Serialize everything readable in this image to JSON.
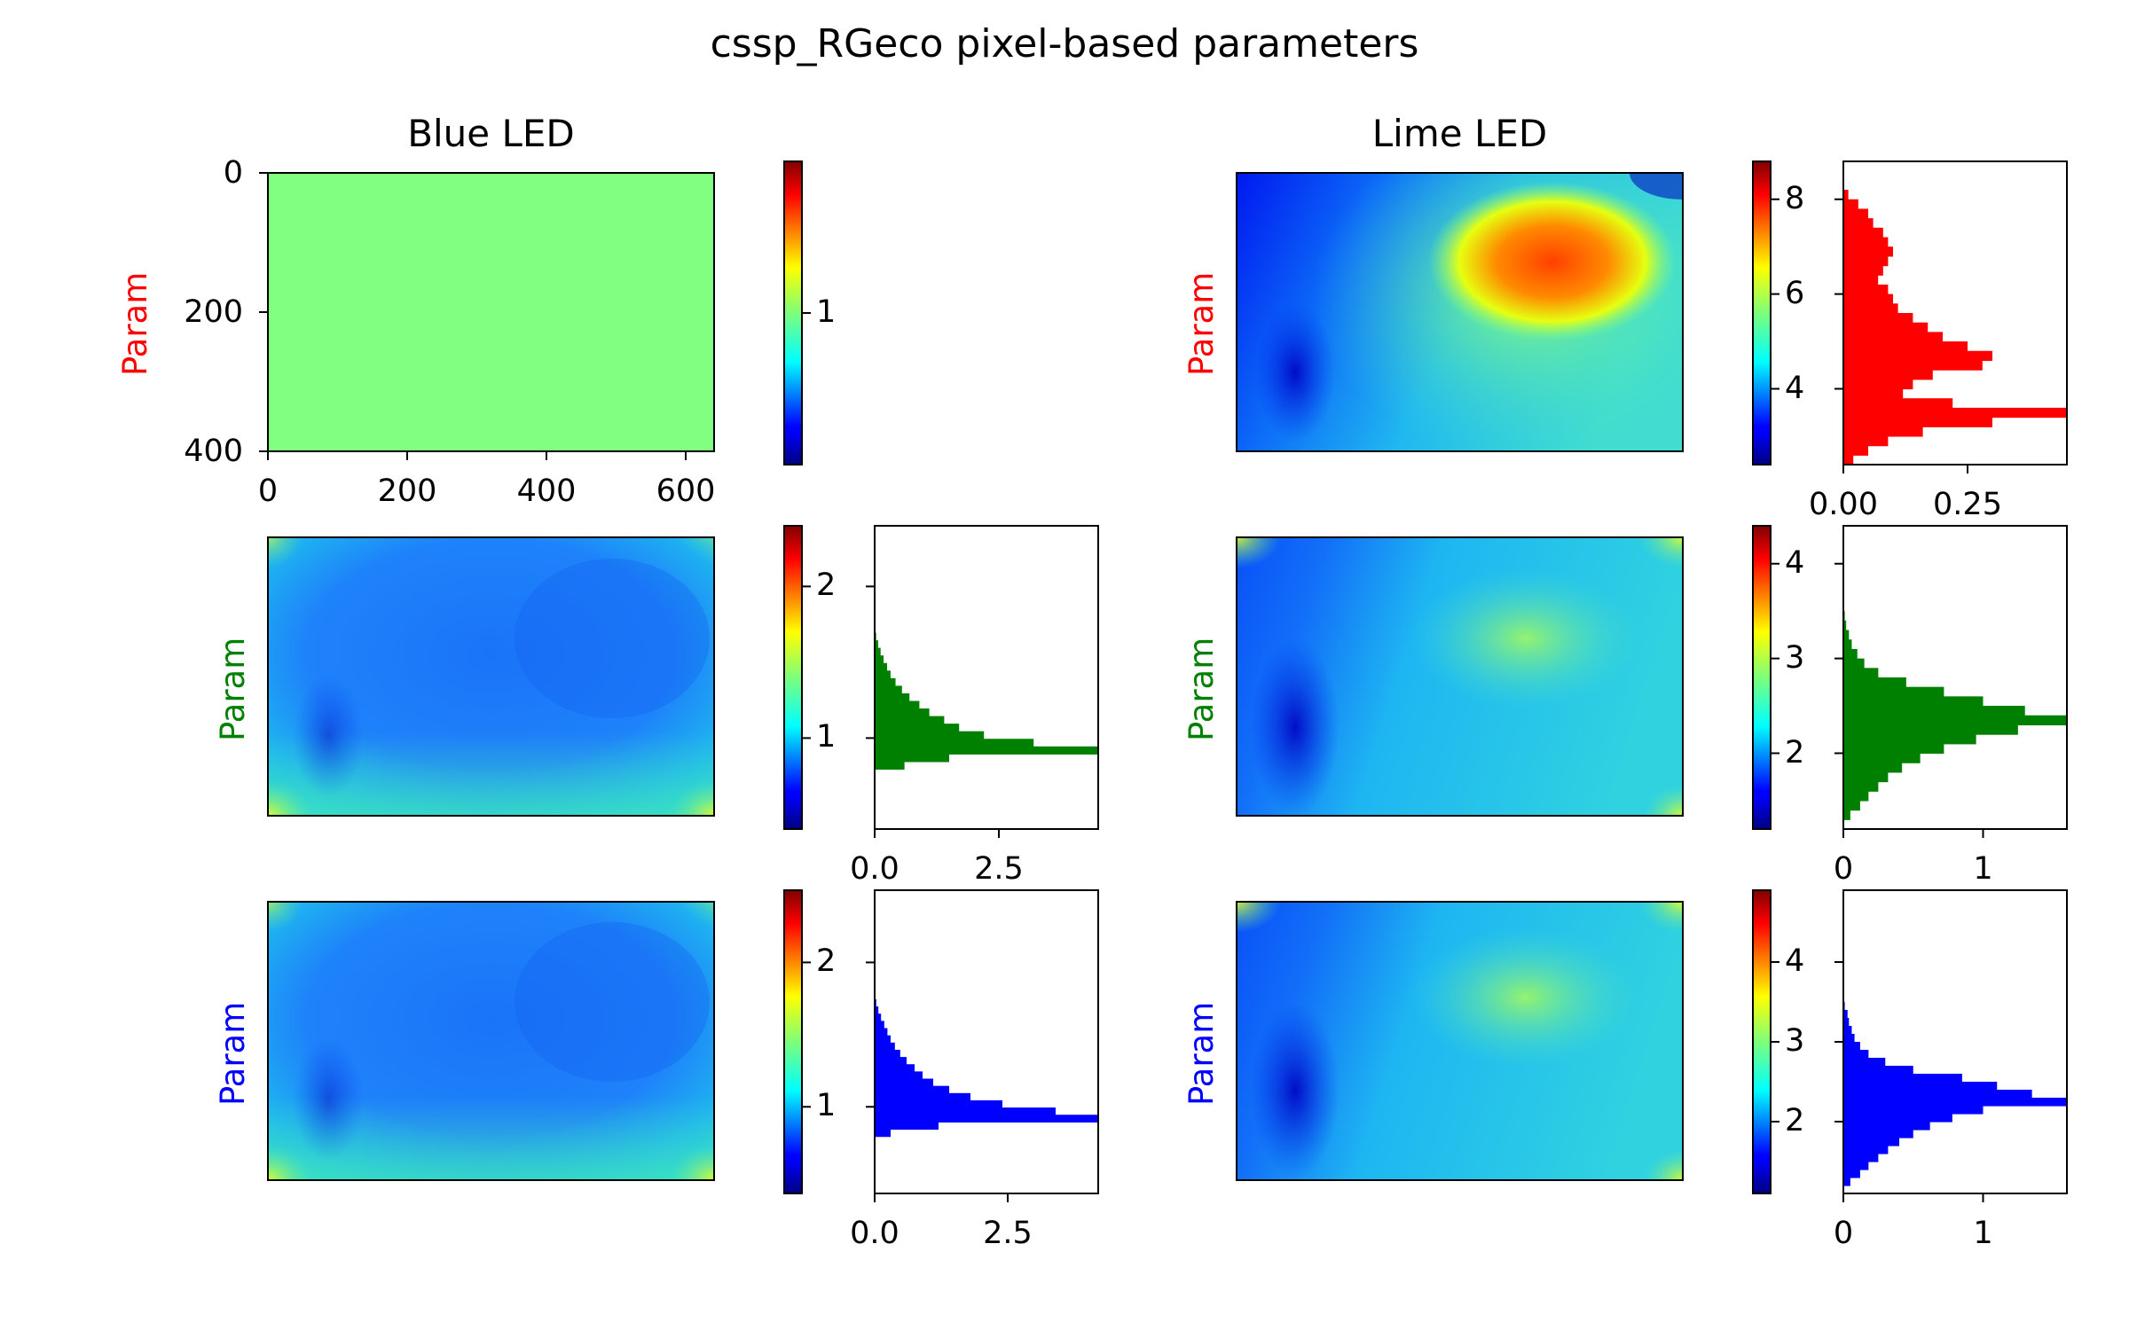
{
  "figure": {
    "title": "cssp_RGeco pixel-based parameters"
  },
  "chart_data": [
    {
      "type": "heatmap",
      "panel": "blue-row-1",
      "column_title": "Blue LED",
      "ylabel": "Param",
      "ylabel_color": "#ff0000",
      "colormap": "jet",
      "uniform_value": 1.0,
      "x_ticks": [
        "0",
        "200",
        "400",
        "600"
      ],
      "y_ticks": [
        "0",
        "200",
        "400"
      ],
      "xlim": [
        0,
        640
      ],
      "ylim": [
        400,
        0
      ],
      "colorbar": {
        "range": [
          0.0,
          2.0
        ],
        "ticks": [
          {
            "value": 1,
            "label": "1"
          }
        ]
      }
    },
    {
      "type": "heatmap",
      "panel": "blue-row-2",
      "ylabel": "Param",
      "ylabel_color": "#008000",
      "colormap": "jet",
      "colorbar": {
        "range": [
          0.4,
          2.4
        ],
        "ticks": [
          {
            "value": 1,
            "label": "1"
          },
          {
            "value": 2,
            "label": "2"
          }
        ]
      },
      "histogram": {
        "color": "#008000",
        "orientation": "horizontal",
        "x_ticks": [
          {
            "value": 0,
            "label": "0.0"
          },
          {
            "value": 2.5,
            "label": "2.5"
          }
        ],
        "xlim": [
          0,
          4.5
        ],
        "bins": [
          [
            0.82,
            0.6
          ],
          [
            0.87,
            1.5
          ],
          [
            0.92,
            4.5
          ],
          [
            0.97,
            3.2
          ],
          [
            1.02,
            2.2
          ],
          [
            1.07,
            1.7
          ],
          [
            1.12,
            1.4
          ],
          [
            1.17,
            1.1
          ],
          [
            1.22,
            0.9
          ],
          [
            1.27,
            0.7
          ],
          [
            1.32,
            0.55
          ],
          [
            1.37,
            0.42
          ],
          [
            1.42,
            0.32
          ],
          [
            1.47,
            0.25
          ],
          [
            1.52,
            0.18
          ],
          [
            1.57,
            0.12
          ],
          [
            1.62,
            0.07
          ],
          [
            1.67,
            0.03
          ]
        ]
      }
    },
    {
      "type": "heatmap",
      "panel": "blue-row-3",
      "ylabel": "Param",
      "ylabel_color": "#0000ff",
      "colormap": "jet",
      "colorbar": {
        "range": [
          0.4,
          2.5
        ],
        "ticks": [
          {
            "value": 1,
            "label": "1"
          },
          {
            "value": 2,
            "label": "2"
          }
        ]
      },
      "histogram": {
        "color": "#0000ff",
        "orientation": "horizontal",
        "x_ticks": [
          {
            "value": 0,
            "label": "0.0"
          },
          {
            "value": 2.5,
            "label": "2.5"
          }
        ],
        "xlim": [
          0,
          4.2
        ],
        "bins": [
          [
            0.82,
            0.3
          ],
          [
            0.87,
            1.2
          ],
          [
            0.92,
            4.2
          ],
          [
            0.97,
            3.4
          ],
          [
            1.02,
            2.4
          ],
          [
            1.07,
            1.8
          ],
          [
            1.12,
            1.4
          ],
          [
            1.17,
            1.1
          ],
          [
            1.22,
            0.9
          ],
          [
            1.27,
            0.75
          ],
          [
            1.32,
            0.6
          ],
          [
            1.37,
            0.48
          ],
          [
            1.42,
            0.38
          ],
          [
            1.47,
            0.3
          ],
          [
            1.52,
            0.24
          ],
          [
            1.57,
            0.18
          ],
          [
            1.62,
            0.12
          ],
          [
            1.67,
            0.07
          ],
          [
            1.72,
            0.03
          ]
        ]
      }
    },
    {
      "type": "heatmap",
      "panel": "lime-row-1",
      "column_title": "Lime LED",
      "ylabel": "Param",
      "ylabel_color": "#ff0000",
      "colormap": "jet",
      "colorbar": {
        "range": [
          2.4,
          8.8
        ],
        "ticks": [
          {
            "value": 4,
            "label": "4"
          },
          {
            "value": 6,
            "label": "6"
          },
          {
            "value": 8,
            "label": "8"
          }
        ]
      },
      "histogram": {
        "color": "#ff0000",
        "orientation": "horizontal",
        "x_ticks": [
          {
            "value": 0,
            "label": "0.00"
          },
          {
            "value": 0.25,
            "label": "0.25"
          }
        ],
        "xlim": [
          0,
          0.45
        ],
        "bins": [
          [
            2.5,
            0.02
          ],
          [
            2.7,
            0.05
          ],
          [
            2.9,
            0.09
          ],
          [
            3.1,
            0.16
          ],
          [
            3.3,
            0.3
          ],
          [
            3.5,
            0.45
          ],
          [
            3.7,
            0.22
          ],
          [
            3.9,
            0.12
          ],
          [
            4.1,
            0.14
          ],
          [
            4.3,
            0.18
          ],
          [
            4.5,
            0.28
          ],
          [
            4.7,
            0.3
          ],
          [
            4.9,
            0.25
          ],
          [
            5.1,
            0.2
          ],
          [
            5.3,
            0.17
          ],
          [
            5.5,
            0.14
          ],
          [
            5.7,
            0.11
          ],
          [
            5.9,
            0.1
          ],
          [
            6.1,
            0.09
          ],
          [
            6.3,
            0.07
          ],
          [
            6.5,
            0.08
          ],
          [
            6.7,
            0.09
          ],
          [
            6.9,
            0.1
          ],
          [
            7.1,
            0.09
          ],
          [
            7.3,
            0.08
          ],
          [
            7.5,
            0.06
          ],
          [
            7.7,
            0.05
          ],
          [
            7.9,
            0.03
          ],
          [
            8.1,
            0.01
          ]
        ]
      }
    },
    {
      "type": "heatmap",
      "panel": "lime-row-2",
      "ylabel": "Param",
      "ylabel_color": "#008000",
      "colormap": "jet",
      "colorbar": {
        "range": [
          1.2,
          4.4
        ],
        "ticks": [
          {
            "value": 2,
            "label": "2"
          },
          {
            "value": 3,
            "label": "3"
          },
          {
            "value": 4,
            "label": "4"
          }
        ]
      },
      "histogram": {
        "color": "#008000",
        "orientation": "horizontal",
        "x_ticks": [
          {
            "value": 0,
            "label": "0"
          },
          {
            "value": 1,
            "label": "1"
          }
        ],
        "xlim": [
          0,
          1.6
        ],
        "bins": [
          [
            1.35,
            0.05
          ],
          [
            1.45,
            0.12
          ],
          [
            1.55,
            0.18
          ],
          [
            1.65,
            0.25
          ],
          [
            1.75,
            0.32
          ],
          [
            1.85,
            0.42
          ],
          [
            1.95,
            0.55
          ],
          [
            2.05,
            0.72
          ],
          [
            2.15,
            0.95
          ],
          [
            2.25,
            1.25
          ],
          [
            2.35,
            1.6
          ],
          [
            2.45,
            1.3
          ],
          [
            2.55,
            1.0
          ],
          [
            2.65,
            0.72
          ],
          [
            2.75,
            0.45
          ],
          [
            2.85,
            0.25
          ],
          [
            2.95,
            0.15
          ],
          [
            3.05,
            0.1
          ],
          [
            3.15,
            0.06
          ],
          [
            3.25,
            0.04
          ],
          [
            3.35,
            0.02
          ],
          [
            3.45,
            0.01
          ]
        ]
      }
    },
    {
      "type": "heatmap",
      "panel": "lime-row-3",
      "ylabel": "Param",
      "ylabel_color": "#0000ff",
      "colormap": "jet",
      "colorbar": {
        "range": [
          1.1,
          4.9
        ],
        "ticks": [
          {
            "value": 2,
            "label": "2"
          },
          {
            "value": 3,
            "label": "3"
          },
          {
            "value": 4,
            "label": "4"
          }
        ]
      },
      "histogram": {
        "color": "#0000ff",
        "orientation": "horizontal",
        "x_ticks": [
          {
            "value": 0,
            "label": "0"
          },
          {
            "value": 1,
            "label": "1"
          }
        ],
        "xlim": [
          0,
          1.6
        ],
        "bins": [
          [
            1.25,
            0.05
          ],
          [
            1.35,
            0.12
          ],
          [
            1.45,
            0.18
          ],
          [
            1.55,
            0.25
          ],
          [
            1.65,
            0.32
          ],
          [
            1.75,
            0.4
          ],
          [
            1.85,
            0.5
          ],
          [
            1.95,
            0.62
          ],
          [
            2.05,
            0.78
          ],
          [
            2.15,
            1.0
          ],
          [
            2.25,
            1.6
          ],
          [
            2.35,
            1.35
          ],
          [
            2.45,
            1.1
          ],
          [
            2.55,
            0.85
          ],
          [
            2.65,
            0.5
          ],
          [
            2.75,
            0.3
          ],
          [
            2.85,
            0.18
          ],
          [
            2.95,
            0.12
          ],
          [
            3.05,
            0.08
          ],
          [
            3.15,
            0.06
          ],
          [
            3.25,
            0.04
          ],
          [
            3.35,
            0.03
          ],
          [
            3.45,
            0.01
          ]
        ]
      }
    }
  ]
}
